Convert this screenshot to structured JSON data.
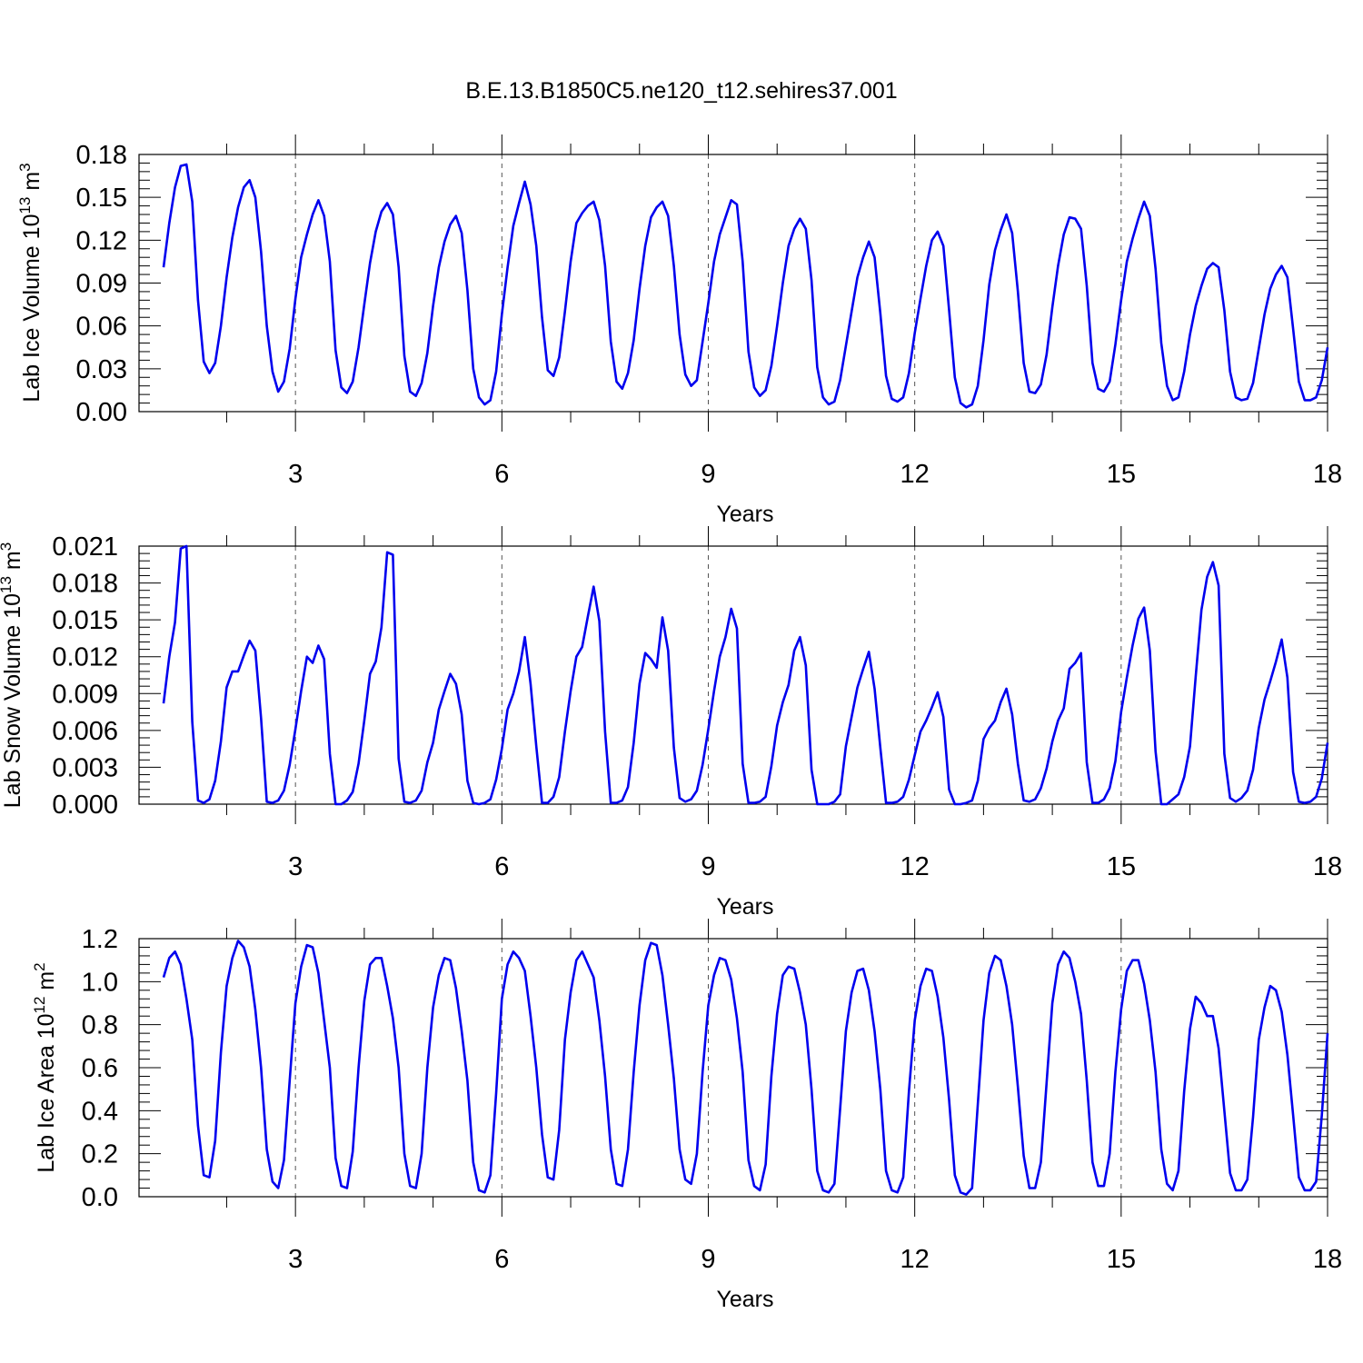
{
  "title": "B.E.13.B1850C5.ne120_t12.sehires37.001",
  "chart_data": [
    {
      "type": "line",
      "xlabel": "Years",
      "ylabel": "Lab Ice Volume 10",
      "ylabel_exp": "13",
      "ylabel_unit": " m",
      "ylabel_unit_exp": "3",
      "xlim": [
        1.083,
        18.0
      ],
      "ylim": [
        0,
        0.18
      ],
      "xticks": [
        3,
        6,
        9,
        12,
        15,
        18
      ],
      "xtick_labels": [
        "3",
        "6",
        "9",
        "12",
        "15",
        "18"
      ],
      "yticks": [
        0,
        0.03,
        0.06,
        0.09,
        0.12,
        0.15,
        0.18
      ],
      "ytick_labels": [
        "0.00",
        "0.03",
        "0.06",
        "0.09",
        "0.12",
        "0.15",
        "0.18"
      ],
      "grid": "dashed vertical lines at year ticks",
      "series": [
        {
          "color": "#0000ee",
          "values": [
            0.101,
            0.132,
            0.157,
            0.172,
            0.173,
            0.147,
            0.078,
            0.035,
            0.027,
            0.034,
            0.06,
            0.094,
            0.122,
            0.143,
            0.157,
            0.162,
            0.15,
            0.112,
            0.06,
            0.028,
            0.014,
            0.021,
            0.044,
            0.079,
            0.108,
            0.124,
            0.138,
            0.148,
            0.137,
            0.105,
            0.043,
            0.017,
            0.013,
            0.021,
            0.045,
            0.075,
            0.104,
            0.126,
            0.14,
            0.146,
            0.138,
            0.101,
            0.039,
            0.014,
            0.011,
            0.02,
            0.041,
            0.074,
            0.101,
            0.119,
            0.131,
            0.137,
            0.125,
            0.085,
            0.03,
            0.01,
            0.005,
            0.008,
            0.028,
            0.068,
            0.101,
            0.13,
            0.146,
            0.161,
            0.145,
            0.116,
            0.066,
            0.029,
            0.025,
            0.038,
            0.07,
            0.105,
            0.132,
            0.139,
            0.144,
            0.147,
            0.134,
            0.102,
            0.049,
            0.021,
            0.016,
            0.027,
            0.05,
            0.086,
            0.116,
            0.136,
            0.143,
            0.147,
            0.137,
            0.102,
            0.054,
            0.026,
            0.018,
            0.022,
            0.049,
            0.076,
            0.105,
            0.124,
            0.136,
            0.148,
            0.145,
            0.105,
            0.042,
            0.017,
            0.011,
            0.015,
            0.032,
            0.06,
            0.09,
            0.116,
            0.128,
            0.135,
            0.128,
            0.092,
            0.031,
            0.01,
            0.005,
            0.007,
            0.022,
            0.046,
            0.07,
            0.094,
            0.108,
            0.119,
            0.108,
            0.069,
            0.025,
            0.009,
            0.007,
            0.01,
            0.027,
            0.055,
            0.079,
            0.102,
            0.12,
            0.126,
            0.116,
            0.071,
            0.024,
            0.006,
            0.003,
            0.005,
            0.018,
            0.05,
            0.089,
            0.113,
            0.127,
            0.138,
            0.125,
            0.084,
            0.034,
            0.014,
            0.013,
            0.019,
            0.04,
            0.073,
            0.102,
            0.124,
            0.136,
            0.135,
            0.128,
            0.088,
            0.034,
            0.016,
            0.014,
            0.021,
            0.047,
            0.078,
            0.105,
            0.121,
            0.135,
            0.147,
            0.137,
            0.1,
            0.048,
            0.018,
            0.008,
            0.01,
            0.028,
            0.054,
            0.074,
            0.088,
            0.1,
            0.104,
            0.101,
            0.071,
            0.028,
            0.01,
            0.008,
            0.009,
            0.02,
            0.044,
            0.068,
            0.086,
            0.096,
            0.102,
            0.094,
            0.058,
            0.021,
            0.008,
            0.008,
            0.01,
            0.022,
            0.045
          ]
        }
      ]
    },
    {
      "type": "line",
      "xlabel": "Years",
      "ylabel": "Lab Snow Volume 10",
      "ylabel_exp": "13",
      "ylabel_unit": " m",
      "ylabel_unit_exp": "3",
      "xlim": [
        1.083,
        18.0
      ],
      "ylim": [
        0,
        0.021
      ],
      "xticks": [
        3,
        6,
        9,
        12,
        15,
        18
      ],
      "xtick_labels": [
        "3",
        "6",
        "9",
        "12",
        "15",
        "18"
      ],
      "yticks": [
        0,
        0.003,
        0.006,
        0.009,
        0.012,
        0.015,
        0.018,
        0.021
      ],
      "ytick_labels": [
        "0.000",
        "0.003",
        "0.006",
        "0.009",
        "0.012",
        "0.015",
        "0.018",
        "0.021"
      ],
      "grid": "dashed vertical lines at year ticks",
      "series": [
        {
          "color": "#0000ee",
          "values": [
            0.0082,
            0.012,
            0.0148,
            0.0208,
            0.021,
            0.0067,
            0.0003,
            0.0001,
            0.0004,
            0.0019,
            0.0051,
            0.0095,
            0.0108,
            0.0108,
            0.0121,
            0.0133,
            0.0125,
            0.007,
            0.0002,
            0.0001,
            0.0003,
            0.0011,
            0.0032,
            0.0061,
            0.0092,
            0.012,
            0.0115,
            0.0129,
            0.0118,
            0.0041,
            0.0,
            0.0,
            0.0003,
            0.001,
            0.0033,
            0.0068,
            0.0106,
            0.0116,
            0.0144,
            0.0205,
            0.0203,
            0.0037,
            0.0002,
            0.0001,
            0.0003,
            0.0011,
            0.0034,
            0.005,
            0.0077,
            0.0092,
            0.0106,
            0.0098,
            0.0073,
            0.0019,
            0.0001,
            0.0,
            0.0001,
            0.0004,
            0.002,
            0.0045,
            0.0077,
            0.009,
            0.0108,
            0.0136,
            0.0098,
            0.0047,
            0.0001,
            0.0001,
            0.0006,
            0.0022,
            0.0059,
            0.0092,
            0.012,
            0.0128,
            0.0153,
            0.0177,
            0.0149,
            0.0059,
            0.0001,
            0.0001,
            0.0003,
            0.0014,
            0.005,
            0.0098,
            0.0123,
            0.0118,
            0.0111,
            0.0152,
            0.0125,
            0.0046,
            0.0005,
            0.0002,
            0.0004,
            0.0011,
            0.0032,
            0.0061,
            0.0092,
            0.012,
            0.0136,
            0.0159,
            0.0143,
            0.0033,
            0.0001,
            0.0001,
            0.0002,
            0.0006,
            0.0031,
            0.0064,
            0.0083,
            0.0097,
            0.0125,
            0.0136,
            0.0113,
            0.0028,
            0.0,
            0.0,
            0.0,
            0.0002,
            0.0008,
            0.0047,
            0.0071,
            0.0095,
            0.011,
            0.0124,
            0.0094,
            0.0046,
            0.0001,
            0.0001,
            0.0002,
            0.0006,
            0.002,
            0.004,
            0.0059,
            0.0068,
            0.0079,
            0.0091,
            0.0071,
            0.0012,
            0.0,
            0.0,
            0.0001,
            0.0003,
            0.0019,
            0.0053,
            0.0062,
            0.0068,
            0.0083,
            0.0094,
            0.0073,
            0.0033,
            0.0003,
            0.0002,
            0.0004,
            0.0013,
            0.0029,
            0.0051,
            0.0068,
            0.0078,
            0.011,
            0.0115,
            0.0123,
            0.0034,
            0.0001,
            0.0001,
            0.0004,
            0.0013,
            0.0035,
            0.0075,
            0.0103,
            0.0129,
            0.0151,
            0.016,
            0.0125,
            0.0043,
            0.0,
            0.0,
            0.0004,
            0.0008,
            0.0022,
            0.0047,
            0.0104,
            0.0158,
            0.0185,
            0.0197,
            0.0178,
            0.0041,
            0.0005,
            0.0002,
            0.0005,
            0.0011,
            0.0028,
            0.0062,
            0.0085,
            0.01,
            0.0116,
            0.0134,
            0.0103,
            0.0026,
            0.0002,
            0.0001,
            0.0002,
            0.0006,
            0.0021,
            0.005
          ]
        }
      ]
    },
    {
      "type": "line",
      "xlabel": "Years",
      "ylabel": "Lab Ice Area 10",
      "ylabel_exp": "12",
      "ylabel_unit": " m",
      "ylabel_unit_exp": "2",
      "xlim": [
        1.083,
        18.0
      ],
      "ylim": [
        0,
        1.2
      ],
      "xticks": [
        3,
        6,
        9,
        12,
        15,
        18
      ],
      "xtick_labels": [
        "3",
        "6",
        "9",
        "12",
        "15",
        "18"
      ],
      "yticks": [
        0,
        0.2,
        0.4,
        0.6,
        0.8,
        1.0,
        1.2
      ],
      "ytick_labels": [
        "0.0",
        "0.2",
        "0.4",
        "0.6",
        "0.8",
        "1.0",
        "1.2"
      ],
      "grid": "dashed vertical lines at year ticks",
      "series": [
        {
          "color": "#0000ee",
          "values": [
            1.02,
            1.11,
            1.14,
            1.08,
            0.92,
            0.73,
            0.33,
            0.1,
            0.09,
            0.26,
            0.67,
            0.98,
            1.11,
            1.19,
            1.16,
            1.07,
            0.87,
            0.6,
            0.22,
            0.07,
            0.04,
            0.17,
            0.54,
            0.9,
            1.07,
            1.17,
            1.16,
            1.04,
            0.82,
            0.6,
            0.18,
            0.05,
            0.04,
            0.21,
            0.6,
            0.91,
            1.08,
            1.11,
            1.11,
            0.98,
            0.83,
            0.6,
            0.2,
            0.05,
            0.04,
            0.2,
            0.6,
            0.88,
            1.03,
            1.11,
            1.1,
            0.97,
            0.77,
            0.54,
            0.16,
            0.03,
            0.02,
            0.1,
            0.48,
            0.92,
            1.08,
            1.14,
            1.11,
            1.05,
            0.84,
            0.6,
            0.29,
            0.09,
            0.08,
            0.31,
            0.73,
            0.95,
            1.1,
            1.14,
            1.08,
            1.02,
            0.82,
            0.56,
            0.22,
            0.06,
            0.05,
            0.22,
            0.58,
            0.89,
            1.1,
            1.18,
            1.17,
            1.03,
            0.8,
            0.55,
            0.22,
            0.08,
            0.06,
            0.2,
            0.58,
            0.89,
            1.03,
            1.11,
            1.1,
            1.01,
            0.83,
            0.58,
            0.17,
            0.05,
            0.03,
            0.15,
            0.56,
            0.85,
            1.03,
            1.07,
            1.06,
            0.95,
            0.8,
            0.5,
            0.12,
            0.03,
            0.02,
            0.06,
            0.41,
            0.77,
            0.95,
            1.05,
            1.06,
            0.96,
            0.77,
            0.5,
            0.12,
            0.03,
            0.02,
            0.09,
            0.49,
            0.82,
            0.98,
            1.06,
            1.05,
            0.93,
            0.74,
            0.45,
            0.1,
            0.02,
            0.01,
            0.04,
            0.43,
            0.82,
            1.04,
            1.12,
            1.1,
            0.98,
            0.8,
            0.51,
            0.19,
            0.04,
            0.04,
            0.16,
            0.53,
            0.9,
            1.08,
            1.14,
            1.11,
            1.0,
            0.85,
            0.54,
            0.16,
            0.05,
            0.05,
            0.2,
            0.58,
            0.87,
            1.05,
            1.1,
            1.1,
            0.99,
            0.82,
            0.58,
            0.22,
            0.06,
            0.03,
            0.12,
            0.49,
            0.78,
            0.93,
            0.9,
            0.84,
            0.84,
            0.69,
            0.4,
            0.11,
            0.03,
            0.03,
            0.08,
            0.37,
            0.73,
            0.88,
            0.98,
            0.96,
            0.86,
            0.66,
            0.38,
            0.09,
            0.03,
            0.03,
            0.07,
            0.38,
            0.76
          ]
        }
      ]
    }
  ]
}
